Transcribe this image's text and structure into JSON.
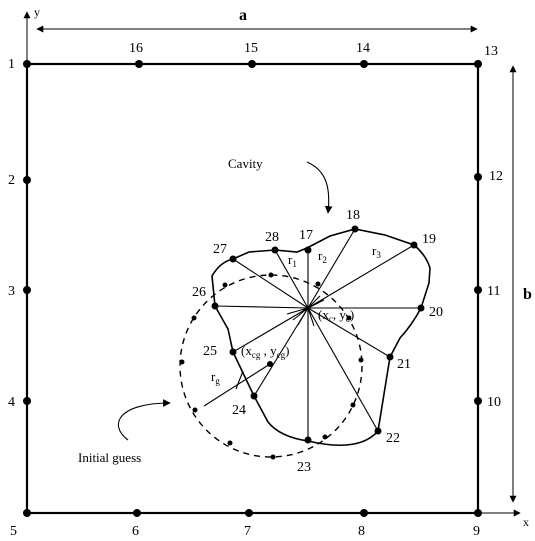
{
  "axes": {
    "x": "x",
    "y": "y"
  },
  "dims": {
    "a": "a",
    "b": "b"
  },
  "boundary_nodes": [
    "1",
    "2",
    "3",
    "4",
    "5",
    "6",
    "7",
    "8",
    "9",
    "10",
    "11",
    "12",
    "13",
    "14",
    "15",
    "16"
  ],
  "cavity_nodes": [
    "17",
    "18",
    "19",
    "20",
    "21",
    "22",
    "23",
    "24",
    "25",
    "26",
    "27",
    "28"
  ],
  "labels": {
    "cavity": "Cavity",
    "initial_guess": "Initial guess",
    "r1": "r",
    "r1_sub": "1",
    "r2": "r",
    "r2_sub": "2",
    "r3": "r",
    "r3_sub": "3",
    "rg": "r",
    "rg_sub": "g",
    "center_open": "(x",
    "center_xsub": "c",
    "center_mid": ", y",
    "center_ysub": "c",
    "center_close": ")",
    "guess_open": "(x",
    "guess_xsub": "cg",
    "guess_mid": " , y",
    "guess_ysub": "cg",
    "guess_close": ")"
  }
}
